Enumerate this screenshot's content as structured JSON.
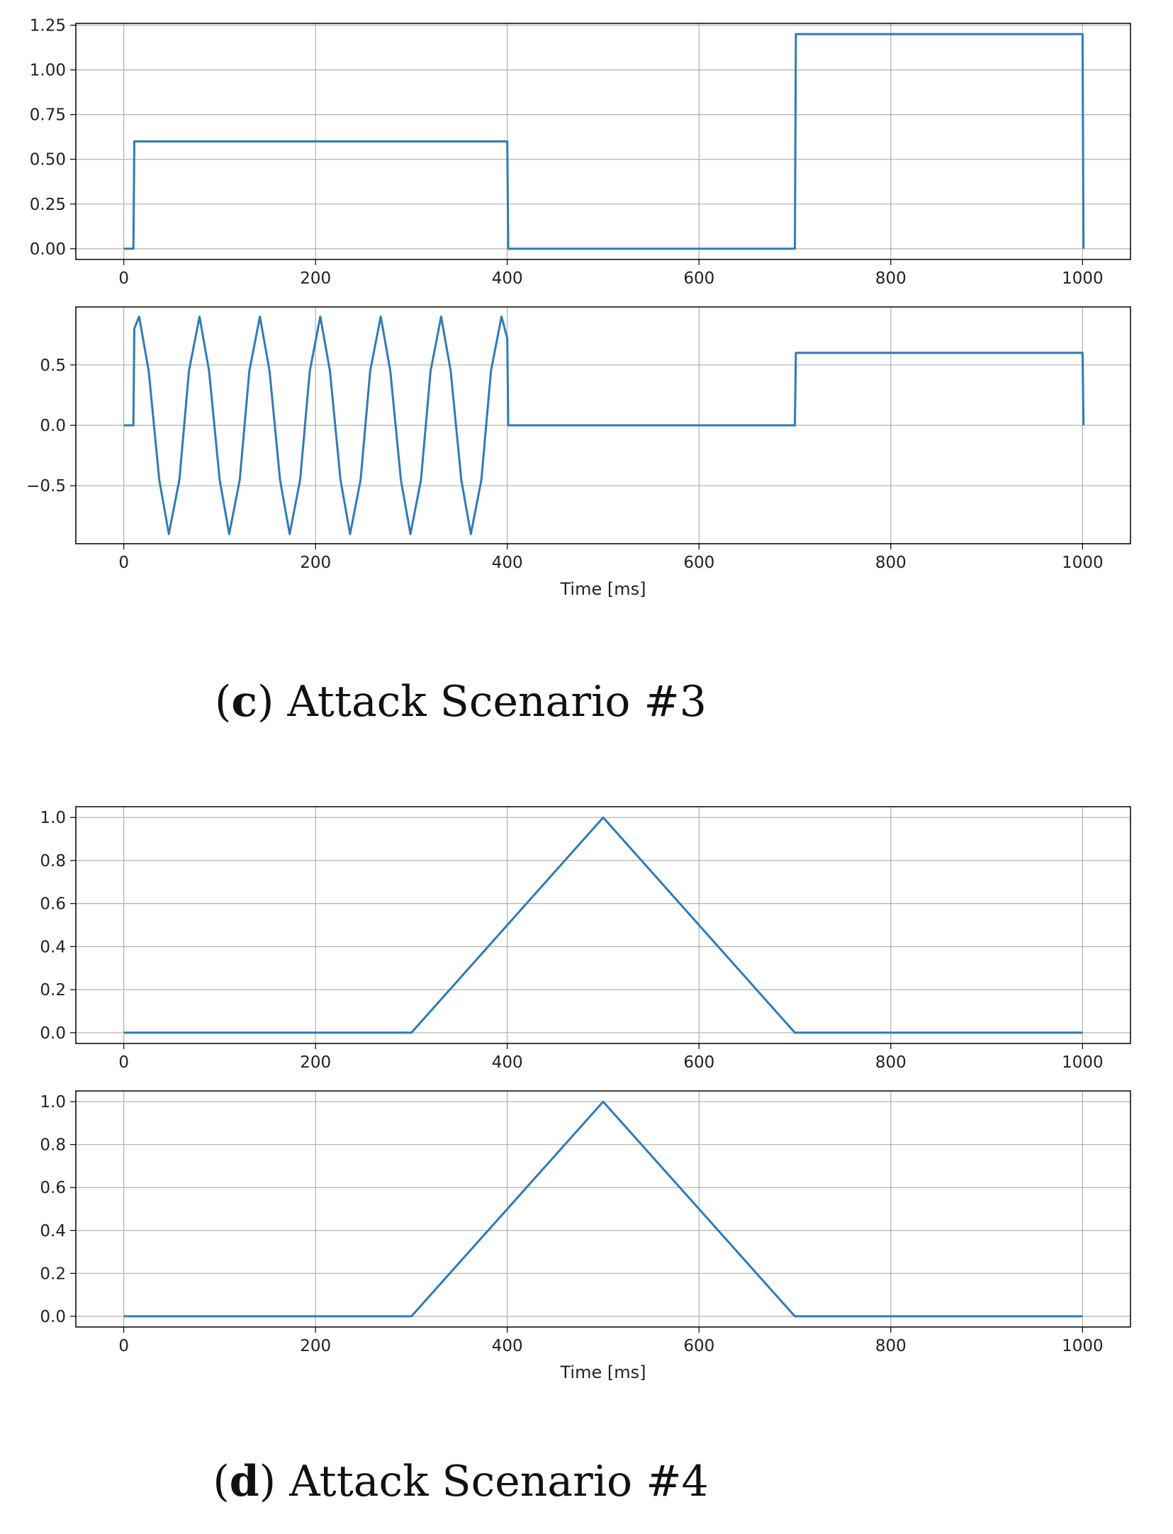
{
  "figure": {
    "captions": [
      {
        "letter": "c",
        "text": "Attack Scenario #3"
      },
      {
        "letter": "d",
        "text": "Attack Scenario #4"
      }
    ],
    "colors": {
      "line": "#2f7bb8",
      "grid": "#b0b0b0",
      "axes": "#000000"
    }
  },
  "chart_data": [
    {
      "type": "line",
      "panel": "c-top",
      "xlabel": "",
      "ylabel": "",
      "xlim": [
        -50,
        1050
      ],
      "ylim": [
        -0.06,
        1.26
      ],
      "xticks": [
        0,
        200,
        400,
        600,
        800,
        1000
      ],
      "yticks": [
        0.0,
        0.25,
        0.5,
        0.75,
        1.0,
        1.25
      ],
      "ytick_labels": [
        "0.00",
        "0.25",
        "0.50",
        "0.75",
        "1.00",
        "1.25"
      ],
      "grid": true,
      "series": [
        {
          "x": [
            0,
            10,
            11,
            400,
            401,
            700,
            701,
            1000,
            1001
          ],
          "y": [
            0,
            0,
            0.6,
            0.6,
            0,
            0,
            1.2,
            1.2,
            0
          ]
        }
      ]
    },
    {
      "type": "line",
      "panel": "c-bottom",
      "xlabel": "Time [ms]",
      "ylabel": "",
      "xlim": [
        -50,
        1050
      ],
      "ylim": [
        -0.98,
        0.98
      ],
      "xticks": [
        0,
        200,
        400,
        600,
        800,
        1000
      ],
      "yticks": [
        -0.5,
        0.0,
        0.5
      ],
      "ytick_labels": [
        "−0.5",
        "0.0",
        "0.5"
      ],
      "grid": true,
      "series": [
        {
          "x": [
            0,
            10,
            11,
            16,
            26,
            37,
            47,
            58,
            68,
            79,
            89,
            100,
            110,
            121,
            131,
            142,
            152,
            163,
            173,
            184,
            194,
            205,
            215,
            226,
            236,
            247,
            257,
            268,
            278,
            289,
            299,
            310,
            320,
            331,
            341,
            352,
            362,
            373,
            383,
            394,
            400,
            401,
            700,
            701,
            1000,
            1001
          ],
          "y": [
            0,
            0,
            0.8,
            0.9,
            0.45,
            -0.45,
            -0.9,
            -0.45,
            0.45,
            0.9,
            0.45,
            -0.45,
            -0.9,
            -0.45,
            0.45,
            0.9,
            0.45,
            -0.45,
            -0.9,
            -0.45,
            0.45,
            0.9,
            0.45,
            -0.45,
            -0.9,
            -0.45,
            0.45,
            0.9,
            0.45,
            -0.45,
            -0.9,
            -0.45,
            0.45,
            0.9,
            0.45,
            -0.45,
            -0.9,
            -0.45,
            0.45,
            0.9,
            0.72,
            0,
            0,
            0.6,
            0.6,
            0
          ]
        }
      ]
    },
    {
      "type": "line",
      "panel": "d-top",
      "xlabel": "",
      "ylabel": "",
      "xlim": [
        -50,
        1050
      ],
      "ylim": [
        -0.05,
        1.05
      ],
      "xticks": [
        0,
        200,
        400,
        600,
        800,
        1000
      ],
      "yticks": [
        0.0,
        0.2,
        0.4,
        0.6,
        0.8,
        1.0
      ],
      "ytick_labels": [
        "0.0",
        "0.2",
        "0.4",
        "0.6",
        "0.8",
        "1.0"
      ],
      "grid": true,
      "series": [
        {
          "x": [
            0,
            300,
            500,
            700,
            1000
          ],
          "y": [
            0,
            0,
            1.0,
            0,
            0
          ]
        }
      ]
    },
    {
      "type": "line",
      "panel": "d-bottom",
      "xlabel": "Time [ms]",
      "ylabel": "",
      "xlim": [
        -50,
        1050
      ],
      "ylim": [
        -0.05,
        1.05
      ],
      "xticks": [
        0,
        200,
        400,
        600,
        800,
        1000
      ],
      "yticks": [
        0.0,
        0.2,
        0.4,
        0.6,
        0.8,
        1.0
      ],
      "ytick_labels": [
        "0.0",
        "0.2",
        "0.4",
        "0.6",
        "0.8",
        "1.0"
      ],
      "grid": true,
      "series": [
        {
          "x": [
            0,
            300,
            500,
            700,
            1000
          ],
          "y": [
            0,
            0,
            1.0,
            0,
            0
          ]
        }
      ]
    }
  ]
}
